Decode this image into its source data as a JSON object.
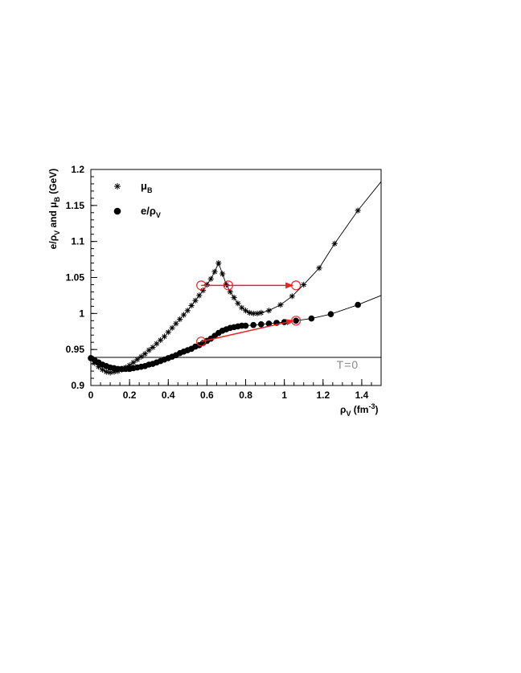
{
  "chart_data": {
    "type": "line",
    "xlim": [
      0,
      1.5
    ],
    "ylim": [
      0.9,
      1.2
    ],
    "x_ticks": [
      "0",
      "0.2",
      "0.4",
      "0.6",
      "0.8",
      "1",
      "1.2",
      "1.4"
    ],
    "x_tick_values": [
      0,
      0.2,
      0.4,
      0.6,
      0.8,
      1.0,
      1.2,
      1.4
    ],
    "y_ticks": [
      "0.9",
      "0.95",
      "1",
      "1.05",
      "1.1",
      "1.15",
      "1.2"
    ],
    "y_tick_values": [
      0.9,
      0.95,
      1.0,
      1.05,
      1.1,
      1.15,
      1.2
    ],
    "xlabel": {
      "main": "ρ",
      "sub": "V",
      "rest": " (fm",
      "sup": "-3",
      "end": ")"
    },
    "ylabel": {
      "p1": "e/ρ",
      "s1": "V",
      "p2": " and μ",
      "s2": "B",
      "p3": " (GeV)"
    },
    "legend": [
      {
        "marker": "star",
        "main": "μ",
        "sub": "B"
      },
      {
        "marker": "dot",
        "main": "e/ρ",
        "sub": "V"
      }
    ],
    "series": [
      {
        "name": "μB",
        "marker": "star",
        "color": "#000000",
        "x": [
          0,
          0.02,
          0.04,
          0.06,
          0.08,
          0.1,
          0.12,
          0.14,
          0.16,
          0.18,
          0.2,
          0.22,
          0.24,
          0.26,
          0.28,
          0.3,
          0.32,
          0.34,
          0.36,
          0.38,
          0.4,
          0.42,
          0.44,
          0.46,
          0.48,
          0.5,
          0.52,
          0.54,
          0.56,
          0.58,
          0.6,
          0.62,
          0.64,
          0.66,
          0.68,
          0.7,
          0.72,
          0.74,
          0.76,
          0.78,
          0.8,
          0.82,
          0.84,
          0.86,
          0.88,
          0.92,
          0.98,
          1.04,
          1.1,
          1.18,
          1.26,
          1.38
        ],
        "y": [
          0.938,
          0.931,
          0.926,
          0.922,
          0.919,
          0.918,
          0.919,
          0.92,
          0.922,
          0.925,
          0.928,
          0.932,
          0.936,
          0.94,
          0.944,
          0.949,
          0.953,
          0.958,
          0.963,
          0.968,
          0.974,
          0.98,
          0.986,
          0.992,
          0.998,
          1.004,
          1.011,
          1.018,
          1.025,
          1.032,
          1.04,
          1.048,
          1.058,
          1.07,
          1.055,
          1.04,
          1.03,
          1.022,
          1.014,
          1.008,
          1.004,
          1.001,
          1.0,
          1.0,
          1.001,
          1.004,
          1.012,
          1.024,
          1.04,
          1.063,
          1.097,
          1.143
        ]
      },
      {
        "name": "e/ρV",
        "marker": "dot",
        "color": "#000000",
        "x": [
          0,
          0.02,
          0.04,
          0.06,
          0.08,
          0.1,
          0.12,
          0.14,
          0.16,
          0.18,
          0.2,
          0.22,
          0.24,
          0.26,
          0.28,
          0.3,
          0.32,
          0.34,
          0.36,
          0.38,
          0.4,
          0.42,
          0.44,
          0.46,
          0.48,
          0.5,
          0.52,
          0.54,
          0.56,
          0.58,
          0.6,
          0.62,
          0.64,
          0.66,
          0.68,
          0.7,
          0.72,
          0.74,
          0.76,
          0.78,
          0.8,
          0.84,
          0.88,
          0.92,
          0.96,
          1.0,
          1.06,
          1.14,
          1.24,
          1.38
        ],
        "y": [
          0.938,
          0.935,
          0.932,
          0.929,
          0.927,
          0.925,
          0.924,
          0.923,
          0.923,
          0.923,
          0.923,
          0.924,
          0.925,
          0.926,
          0.927,
          0.929,
          0.93,
          0.932,
          0.934,
          0.936,
          0.938,
          0.94,
          0.942,
          0.945,
          0.947,
          0.949,
          0.951,
          0.954,
          0.956,
          0.959,
          0.962,
          0.965,
          0.969,
          0.973,
          0.976,
          0.978,
          0.98,
          0.981,
          0.982,
          0.983,
          0.983,
          0.984,
          0.985,
          0.986,
          0.987,
          0.988,
          0.99,
          0.993,
          0.999,
          1.012
        ]
      }
    ],
    "reference_line": {
      "y": 0.939,
      "label": "T=0"
    },
    "construction": {
      "color": "#ee2222",
      "mu_line": {
        "x1": 0.57,
        "x2": 1.06,
        "y": 1.039,
        "circles_x": [
          0.57,
          0.71,
          1.06
        ]
      },
      "e_line": {
        "x1": 0.57,
        "y1": 0.961,
        "x2": 1.06,
        "y2": 0.99,
        "circles_x": [
          0.57,
          1.06
        ]
      }
    },
    "curve_extension": {
      "mu_line": {
        "x_end": 1.5,
        "y_end": 1.183
      },
      "e_line": {
        "x_end": 1.5,
        "y_end": 1.025
      }
    }
  }
}
